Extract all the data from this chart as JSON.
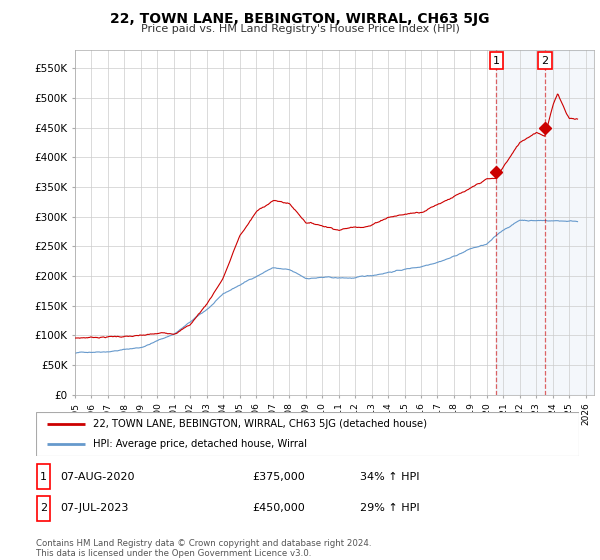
{
  "title": "22, TOWN LANE, BEBINGTON, WIRRAL, CH63 5JG",
  "subtitle": "Price paid vs. HM Land Registry's House Price Index (HPI)",
  "ylabel_ticks": [
    "£0",
    "£50K",
    "£100K",
    "£150K",
    "£200K",
    "£250K",
    "£300K",
    "£350K",
    "£400K",
    "£450K",
    "£500K",
    "£550K"
  ],
  "ytick_values": [
    0,
    50000,
    100000,
    150000,
    200000,
    250000,
    300000,
    350000,
    400000,
    450000,
    500000,
    550000
  ],
  "ylim": [
    0,
    580000
  ],
  "xlim_start": 1995.0,
  "xlim_end": 2026.5,
  "xtick_labels": [
    "1995",
    "1996",
    "1997",
    "1998",
    "1999",
    "2000",
    "2001",
    "2002",
    "2003",
    "2004",
    "2005",
    "2006",
    "2007",
    "2008",
    "2009",
    "2010",
    "2011",
    "2012",
    "2013",
    "2014",
    "2015",
    "2016",
    "2017",
    "2018",
    "2019",
    "2020",
    "2021",
    "2022",
    "2023",
    "2024",
    "2025",
    "2026"
  ],
  "red_line_color": "#cc0000",
  "blue_line_color": "#6699cc",
  "marker1_x": 2020.58,
  "marker1_y": 375000,
  "marker2_x": 2023.52,
  "marker2_y": 450000,
  "vline1_x": 2020.58,
  "vline2_x": 2023.52,
  "legend_red_label": "22, TOWN LANE, BEBINGTON, WIRRAL, CH63 5JG (detached house)",
  "legend_blue_label": "HPI: Average price, detached house, Wirral",
  "table_row1": [
    "1",
    "07-AUG-2020",
    "£375,000",
    "34% ↑ HPI"
  ],
  "table_row2": [
    "2",
    "07-JUL-2023",
    "£450,000",
    "29% ↑ HPI"
  ],
  "footer": "Contains HM Land Registry data © Crown copyright and database right 2024.\nThis data is licensed under the Open Government Licence v3.0.",
  "background_color": "#ffffff",
  "grid_color": "#cccccc",
  "hpi_waypoints_x": [
    1995,
    1997,
    1999,
    2001,
    2003,
    2004,
    2005,
    2006,
    2007,
    2008,
    2009,
    2010,
    2011,
    2012,
    2013,
    2014,
    2015,
    2016,
    2017,
    2018,
    2019,
    2020,
    2021,
    2022,
    2023,
    2024,
    2025
  ],
  "hpi_waypoints_y": [
    70000,
    75000,
    82000,
    105000,
    145000,
    170000,
    185000,
    200000,
    215000,
    210000,
    195000,
    197000,
    195000,
    195000,
    198000,
    205000,
    210000,
    215000,
    225000,
    235000,
    248000,
    255000,
    278000,
    295000,
    295000,
    295000,
    295000
  ],
  "red_waypoints_x": [
    1995,
    1996,
    1997,
    1998,
    1999,
    2000,
    2001,
    2002,
    2003,
    2004,
    2005,
    2006,
    2007,
    2008,
    2009,
    2010,
    2011,
    2012,
    2013,
    2014,
    2015,
    2016,
    2017,
    2018,
    2019,
    2020,
    2020.58,
    2021,
    2022,
    2023,
    2023.52,
    2024,
    2024.3,
    2024.8,
    2025
  ],
  "red_waypoints_y": [
    95000,
    97000,
    99000,
    100000,
    100000,
    102000,
    104000,
    120000,
    155000,
    200000,
    270000,
    310000,
    330000,
    325000,
    295000,
    290000,
    285000,
    290000,
    295000,
    310000,
    315000,
    320000,
    335000,
    350000,
    360000,
    375000,
    375000,
    395000,
    435000,
    455000,
    450000,
    500000,
    520000,
    490000,
    480000
  ],
  "noise_seed_hpi": 42,
  "noise_seed_red": 7,
  "noise_scale_hpi": 2500,
  "noise_scale_red": 3500
}
